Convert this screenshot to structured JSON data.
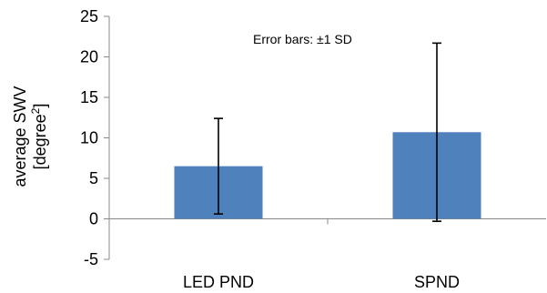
{
  "chart_data": {
    "type": "bar",
    "categories": [
      "LED PND",
      "SPND"
    ],
    "values": [
      6.5,
      10.7
    ],
    "error_sd": [
      5.9,
      11.0
    ],
    "ylim": [
      -5,
      25
    ],
    "yticks": [
      25,
      20,
      15,
      10,
      5,
      0,
      -5
    ],
    "ylabel_line1": "average SWV",
    "ylabel_line2_base": "[degree",
    "ylabel_line2_sup": "2",
    "ylabel_line2_end": "]",
    "annotation": "Error bars: ±1 SD",
    "bar_color": "#4F81BD",
    "grid": false
  }
}
